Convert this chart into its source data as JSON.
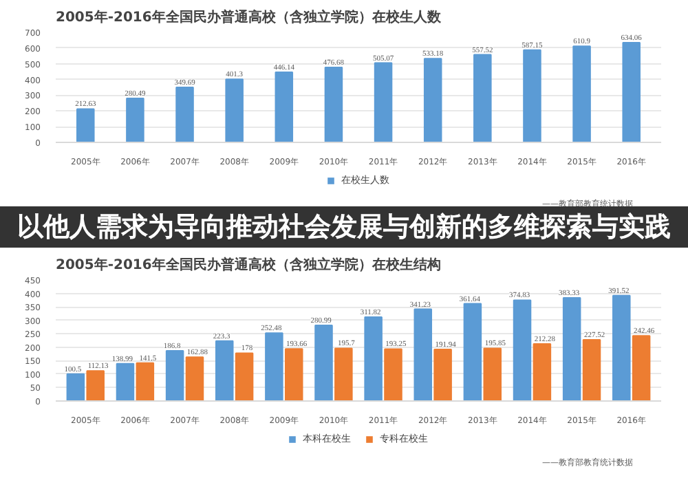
{
  "chart_data": [
    {
      "type": "bar",
      "title": "2005年-2016年全国民办普通高校（含独立学院）在校生人数",
      "categories": [
        "2005年",
        "2006年",
        "2007年",
        "2008年",
        "2009年",
        "2010年",
        "2011年",
        "2012年",
        "2013年",
        "2014年",
        "2015年",
        "2016年"
      ],
      "series": [
        {
          "name": "在校生人数",
          "color": "#5b9bd5",
          "values": [
            212.63,
            280.49,
            349.69,
            401.3,
            446.14,
            476.68,
            505.07,
            533.18,
            557.52,
            587.15,
            610.9,
            634.06
          ]
        }
      ],
      "ylim": [
        0,
        700
      ],
      "yticks": [
        0,
        100,
        200,
        300,
        400,
        500,
        600,
        700
      ],
      "grid": "y",
      "legend": "bottom",
      "data_labels": true,
      "annotations": [
        "——教育部教育统计数据"
      ]
    },
    {
      "type": "other",
      "title": "以他人需求为导向推动社会发展与创新的多维探索与实践"
    },
    {
      "type": "bar",
      "title": "2005年-2016年全国民办普通高校（含独立学院）在校生结构",
      "categories": [
        "2005年",
        "2006年",
        "2007年",
        "2008年",
        "2009年",
        "2010年",
        "2011年",
        "2012年",
        "2013年",
        "2014年",
        "2015年",
        "2016年"
      ],
      "series": [
        {
          "name": "本科在校生",
          "color": "#5b9bd5",
          "values": [
            100.5,
            138.99,
            186.8,
            223.3,
            252.48,
            280.99,
            311.82,
            341.23,
            361.64,
            374.83,
            383.33,
            391.52
          ]
        },
        {
          "name": "专科在校生",
          "color": "#ed7d31",
          "values": [
            112.13,
            141.5,
            162.88,
            178,
            193.66,
            195.7,
            193.25,
            191.94,
            195.85,
            212.28,
            227.52,
            242.46
          ]
        }
      ],
      "ylim": [
        0,
        450
      ],
      "yticks": [
        0,
        50,
        100,
        150,
        200,
        250,
        300,
        350,
        400,
        450
      ],
      "grid": "y",
      "legend": "bottom",
      "data_labels": true,
      "annotations": [
        "——教育部教育统计数据"
      ]
    }
  ]
}
